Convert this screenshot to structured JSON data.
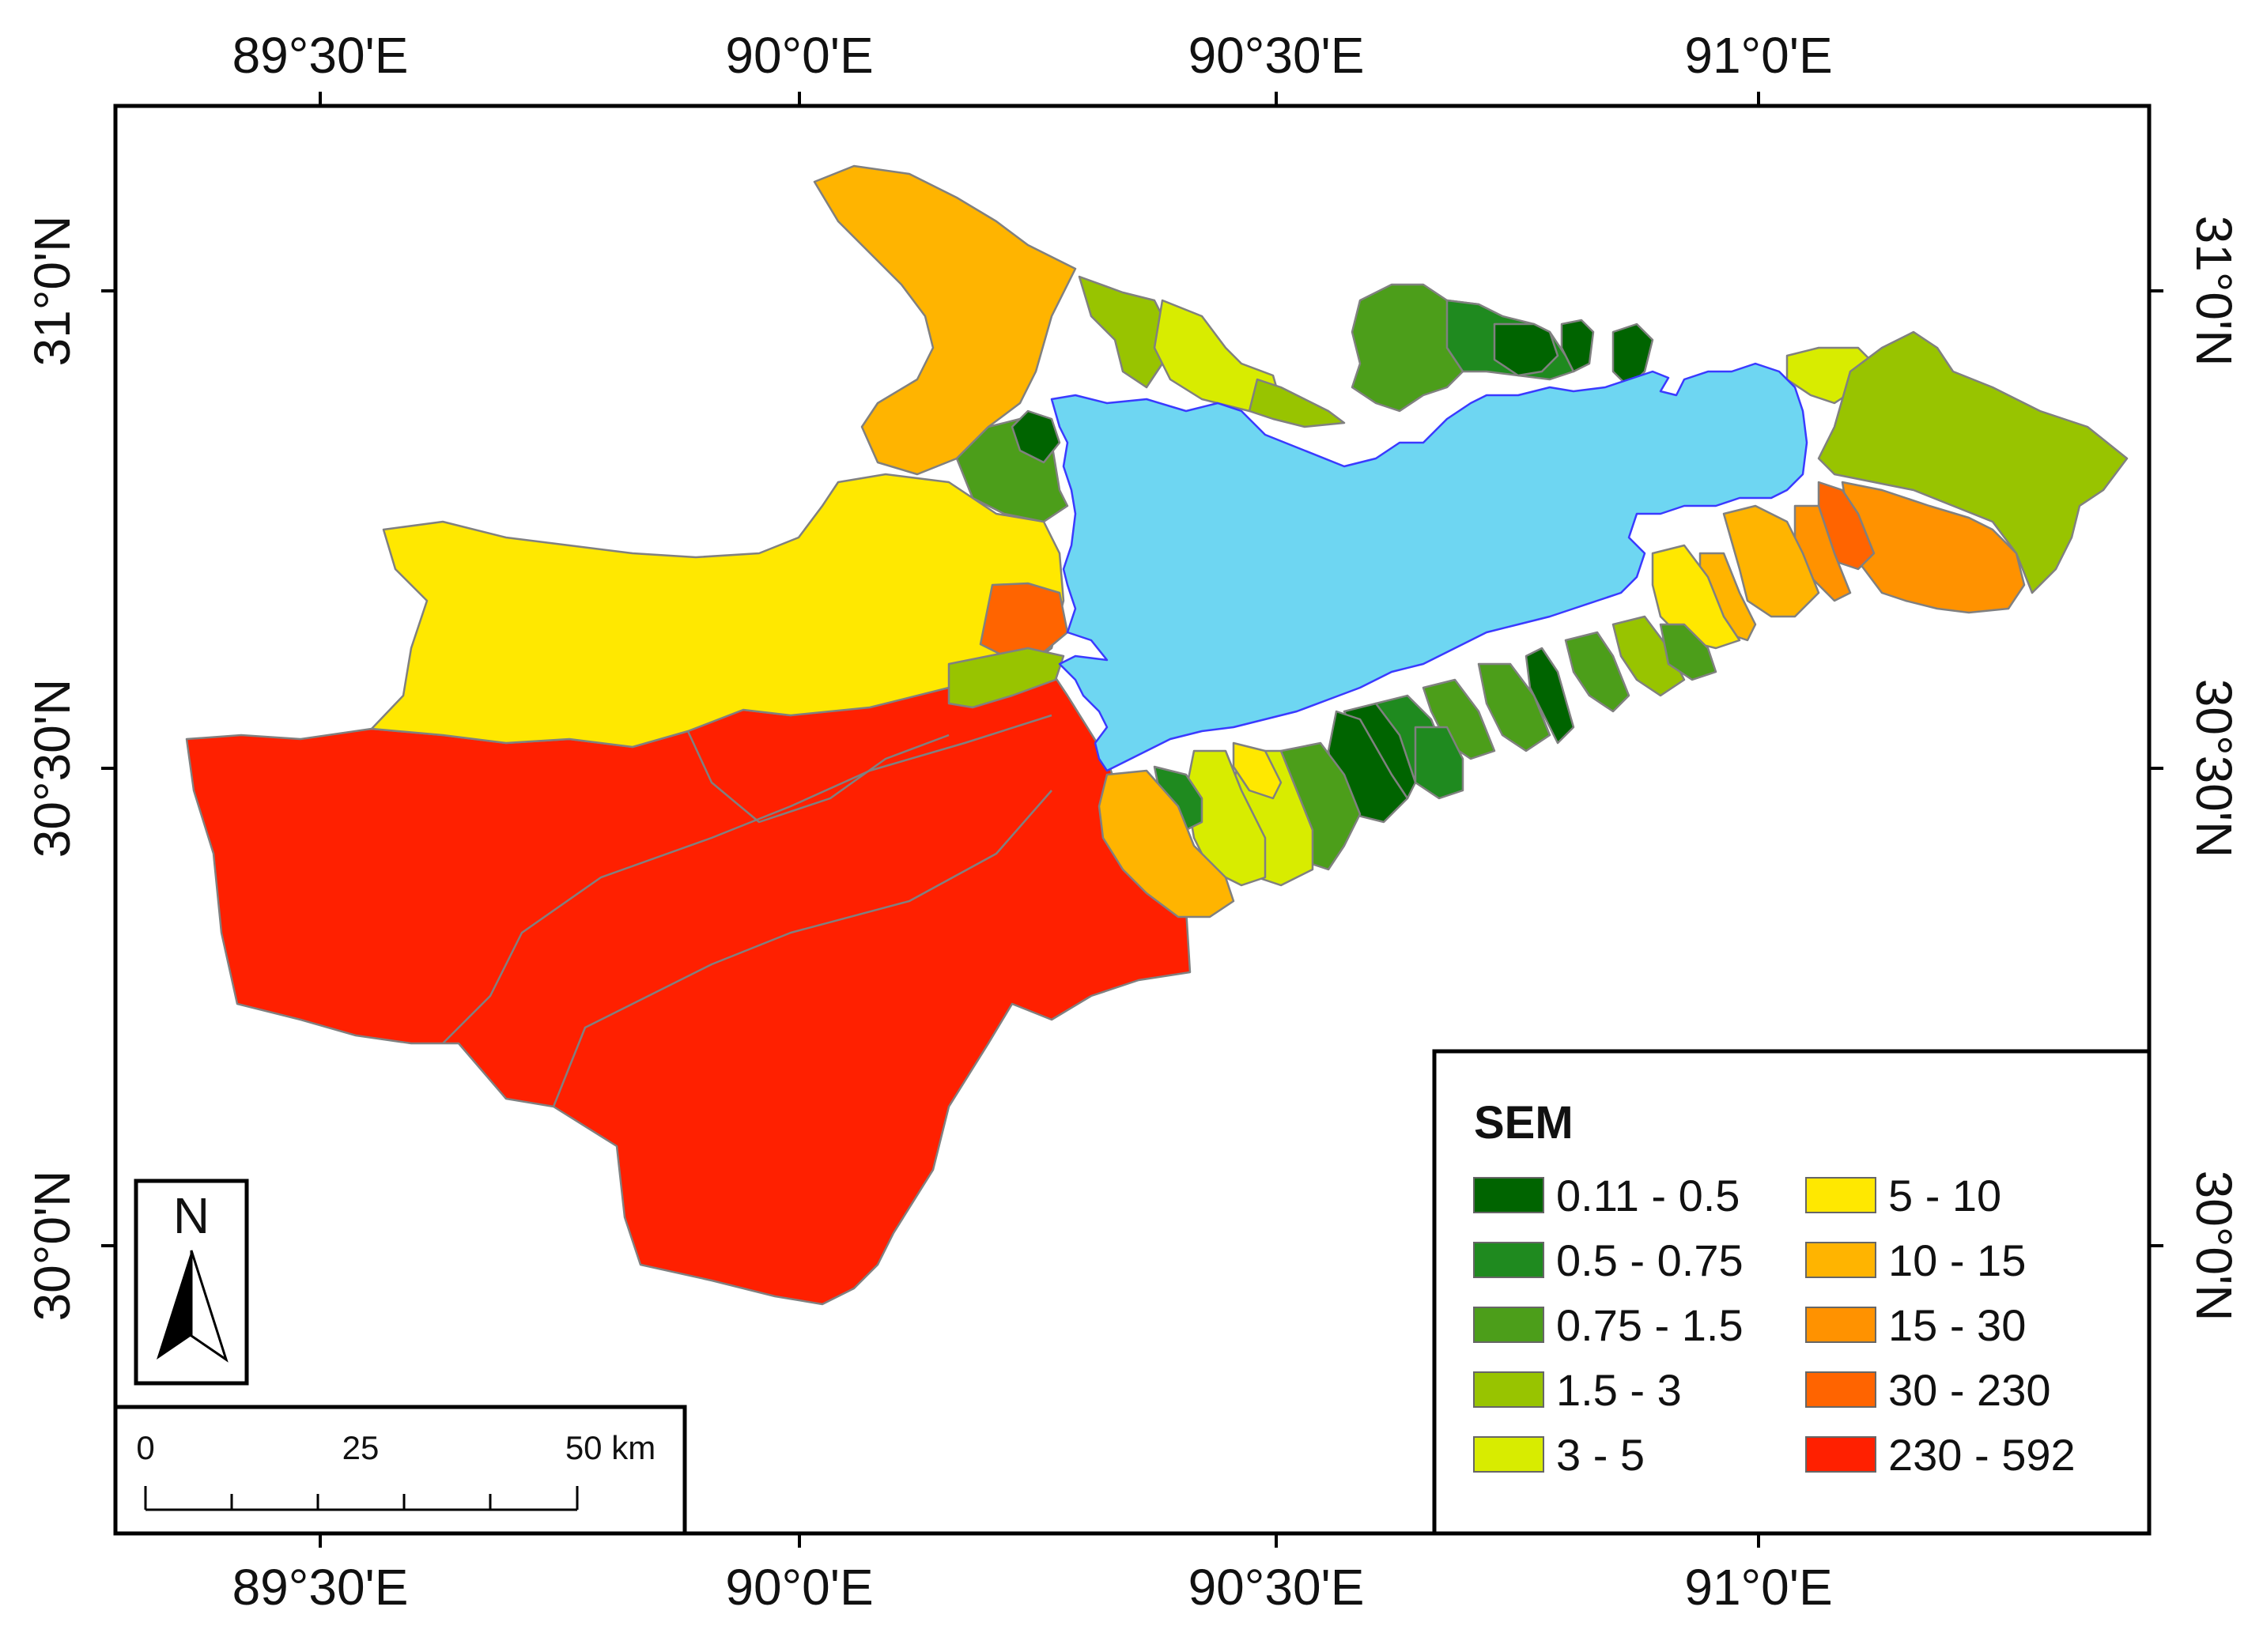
{
  "map": {
    "top_axis_labels": [
      "89°30'E",
      "90°0'E",
      "90°30'E",
      "91°0'E"
    ],
    "bottom_axis_labels": [
      "89°30'E",
      "90°0'E",
      "90°30'E",
      "91°0'E"
    ],
    "left_axis_labels": [
      "31°0'N",
      "30°30'N",
      "30°0'N"
    ],
    "right_axis_labels": [
      "31°0'N",
      "30°30'N",
      "30°0'N"
    ],
    "lake_color": "#6ed6f2",
    "boundary_color": "#808080"
  },
  "legend": {
    "title": "SEM",
    "classes": [
      {
        "label": "0.11 - 0.5",
        "color": "#006400"
      },
      {
        "label": "0.5 - 0.75",
        "color": "#1f8a1f"
      },
      {
        "label": "0.75 - 1.5",
        "color": "#4c9e1a"
      },
      {
        "label": "1.5 - 3",
        "color": "#98c400"
      },
      {
        "label": "3 - 5",
        "color": "#d8ec00"
      },
      {
        "label": "5 - 10",
        "color": "#ffe800"
      },
      {
        "label": "10 - 15",
        "color": "#ffb400"
      },
      {
        "label": "15 - 30",
        "color": "#ff9200"
      },
      {
        "label": "30 - 230",
        "color": "#ff6400"
      },
      {
        "label": "230 - 592",
        "color": "#ff2000"
      }
    ]
  },
  "north_arrow": {
    "label": "N"
  },
  "scale_bar": {
    "labels": [
      "0",
      "25",
      "50 km"
    ]
  }
}
